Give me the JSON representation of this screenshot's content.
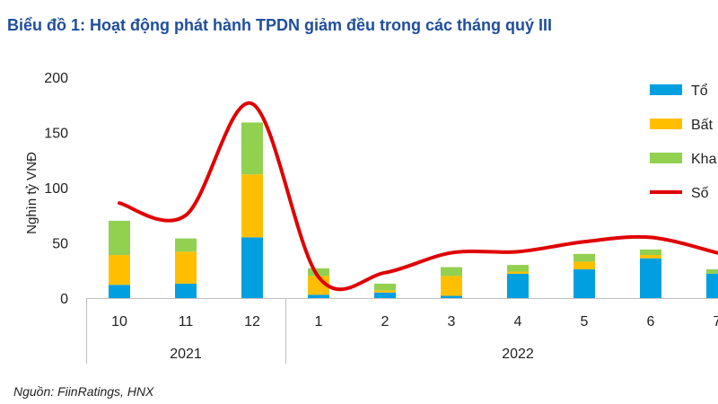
{
  "title": "Biểu đồ 1: Hoạt động phát hành TPDN giảm đều trong các tháng quý III",
  "source": "Nguồn: FiinRatings, HNX",
  "chart_data": {
    "type": "bar",
    "stacked": true,
    "categories": [
      "10",
      "11",
      "12",
      "1",
      "2",
      "3",
      "4",
      "5",
      "6",
      "7"
    ],
    "groups": [
      {
        "label": "2021",
        "count": 3
      },
      {
        "label": "2022",
        "count": 7
      }
    ],
    "ylabel": "Nghìn tỷ VNĐ",
    "ylim": [
      0,
      200
    ],
    "yticks": [
      0,
      50,
      100,
      150,
      200
    ],
    "grid": false,
    "legend_position": "right",
    "series": [
      {
        "name": "Tổ",
        "color": "#00a0e0",
        "values": [
          12,
          13,
          55,
          3,
          5,
          2,
          22,
          26,
          36,
          22
        ]
      },
      {
        "name": "Bất",
        "color": "#ffbf00",
        "values": [
          27,
          29,
          57,
          17,
          2,
          18,
          2,
          7,
          3,
          0
        ]
      },
      {
        "name": "Kha",
        "color": "#92d050",
        "values": [
          31,
          12,
          47,
          7,
          6,
          8,
          6,
          7,
          5,
          4
        ]
      }
    ],
    "line": {
      "name": "Số",
      "color": "#e00000",
      "values": [
        86,
        75,
        176,
        19,
        23,
        41,
        42,
        51,
        55,
        41
      ]
    }
  }
}
